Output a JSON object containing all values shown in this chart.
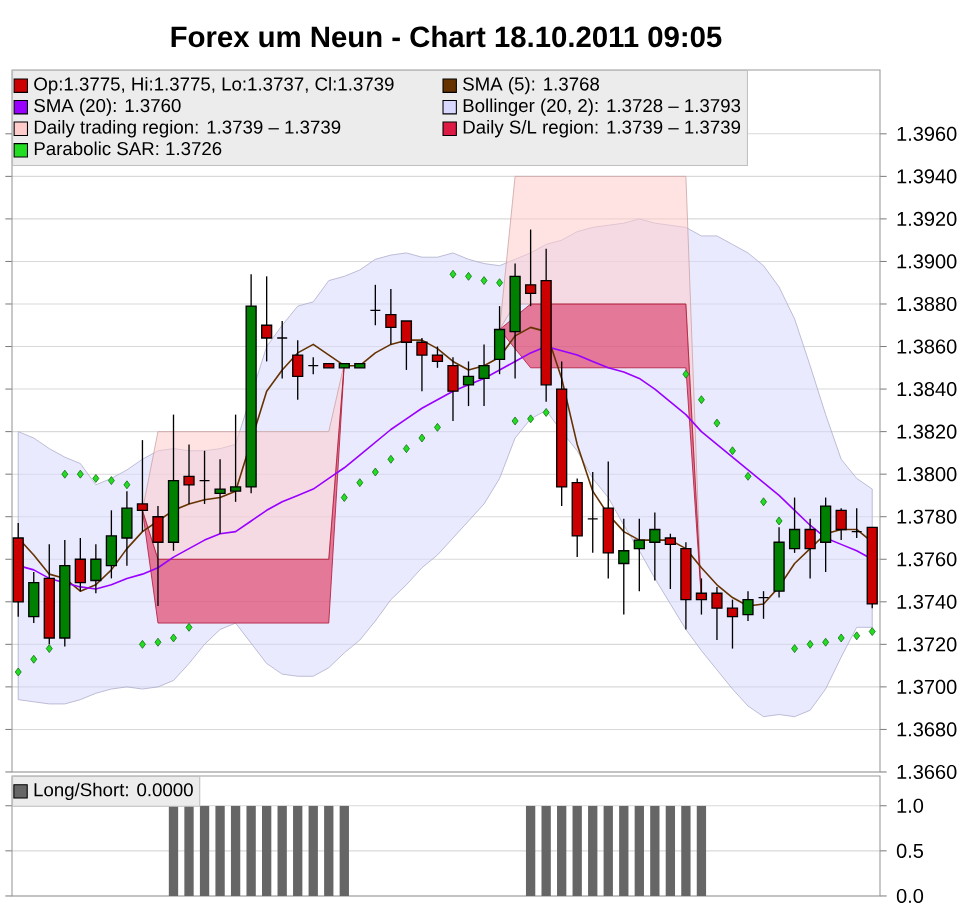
{
  "chart_data": [
    {
      "type": "candlestick",
      "title": "Forex um Neun - Chart 18.10.2011 09:05",
      "categories": [
        null,
        null,
        null,
        null,
        null,
        null,
        null,
        null,
        null,
        null,
        null,
        null,
        null,
        null,
        null,
        null,
        null,
        null,
        null,
        null,
        null,
        null,
        null,
        null,
        null,
        null,
        null,
        null,
        null,
        null,
        null,
        null,
        null,
        null,
        null,
        null,
        null,
        null,
        null,
        null,
        null,
        null,
        null,
        null,
        null,
        null,
        null,
        null,
        null,
        null,
        null,
        null,
        null,
        null,
        null,
        null
      ],
      "ylim": [
        1.366,
        1.399
      ],
      "yticks": [
        {
          "value": 1.366,
          "label": "1.3660"
        },
        {
          "value": 1.368,
          "label": "1.3680"
        },
        {
          "value": 1.37,
          "label": "1.3700"
        },
        {
          "value": 1.372,
          "label": "1.3720"
        },
        {
          "value": 1.374,
          "label": "1.3740"
        },
        {
          "value": 1.376,
          "label": "1.3760"
        },
        {
          "value": 1.378,
          "label": "1.3780"
        },
        {
          "value": 1.38,
          "label": "1.3800"
        },
        {
          "value": 1.382,
          "label": "1.3820"
        },
        {
          "value": 1.384,
          "label": "1.3840"
        },
        {
          "value": 1.386,
          "label": "1.3860"
        },
        {
          "value": 1.388,
          "label": "1.3880"
        },
        {
          "value": 1.39,
          "label": "1.3900"
        },
        {
          "value": 1.392,
          "label": "1.3920"
        },
        {
          "value": 1.394,
          "label": "1.3940"
        },
        {
          "value": 1.396,
          "label": "1.3960"
        }
      ],
      "grid": "y",
      "legend": "top",
      "tick_labels": "y",
      "series": [
        {
          "type": "candlestick",
          "name": "Op:1.3775, Hi:1.3775, Lo:1.3737, Cl:1.3739",
          "color": "#cc0000",
          "colors": [
            "#cc0000",
            "#008000",
            "#cc0000",
            "#008000",
            "#cc0000",
            "#008000",
            "#008000",
            "#008000",
            "#cc0000",
            "#cc0000",
            "#008000",
            "#cc0000",
            "#000000",
            "#008000",
            "#008000",
            "#008000",
            "#cc0000",
            "#000000",
            "#cc0000",
            "#000000",
            "#cc0000",
            "#008000",
            "#008000",
            "#000000",
            "#cc0000",
            "#cc0000",
            "#cc0000",
            "#cc0000",
            "#cc0000",
            "#008000",
            "#008000",
            "#008000",
            "#008000",
            "#cc0000",
            "#cc0000",
            "#cc0000",
            "#cc0000",
            "#000000",
            "#cc0000",
            "#008000",
            "#008000",
            "#008000",
            "#cc0000",
            "#cc0000",
            "#cc0000",
            "#cc0000",
            "#cc0000",
            "#008000",
            "#000000",
            "#008000",
            "#008000",
            "#cc0000",
            "#008000",
            "#cc0000",
            "#000000",
            "#cc0000"
          ],
          "ohlc": [
            [
              1.377,
              1.3777,
              1.3733,
              1.374
            ],
            [
              1.3733,
              1.3754,
              1.373,
              1.3749
            ],
            [
              1.3751,
              1.3767,
              1.372,
              1.3723
            ],
            [
              1.3723,
              1.3769,
              1.3719,
              1.3757
            ],
            [
              1.376,
              1.377,
              1.3745,
              1.3749
            ],
            [
              1.375,
              1.3767,
              1.3744,
              1.376
            ],
            [
              1.3757,
              1.3783,
              1.3751,
              1.3771
            ],
            [
              1.377,
              1.3792,
              1.3757,
              1.3784
            ],
            [
              1.3786,
              1.3816,
              1.3773,
              1.3783
            ],
            [
              1.378,
              1.3785,
              1.3738,
              1.3768
            ],
            [
              1.3768,
              1.3828,
              1.3764,
              1.3797
            ],
            [
              1.3799,
              1.3814,
              1.3786,
              1.3795
            ],
            [
              1.3797,
              1.3811,
              1.3786,
              1.3797
            ],
            [
              1.3791,
              1.3807,
              1.3772,
              1.3793
            ],
            [
              1.3792,
              1.3828,
              1.3787,
              1.3794
            ],
            [
              1.3794,
              1.3894,
              1.3791,
              1.3879
            ],
            [
              1.387,
              1.3893,
              1.3853,
              1.3864
            ],
            [
              1.3864,
              1.3872,
              1.3845,
              1.3864
            ],
            [
              1.3856,
              1.3863,
              1.3835,
              1.3846
            ],
            [
              1.3851,
              1.3855,
              1.3847,
              1.3851
            ],
            [
              1.3852,
              1.3852,
              1.385,
              1.385
            ],
            [
              1.385,
              1.3852,
              1.385,
              1.3852
            ],
            [
              1.385,
              1.3852,
              1.385,
              1.3852
            ],
            [
              1.3877,
              1.3889,
              1.387,
              1.3877
            ],
            [
              1.3875,
              1.3887,
              1.3861,
              1.3869
            ],
            [
              1.3872,
              1.3872,
              1.3849,
              1.3862
            ],
            [
              1.3862,
              1.3864,
              1.3839,
              1.3856
            ],
            [
              1.3856,
              1.386,
              1.385,
              1.3853
            ],
            [
              1.3851,
              1.3855,
              1.3825,
              1.3839
            ],
            [
              1.3842,
              1.3853,
              1.3832,
              1.3846
            ],
            [
              1.3845,
              1.3861,
              1.3832,
              1.3851
            ],
            [
              1.3854,
              1.3879,
              1.3847,
              1.3868
            ],
            [
              1.3867,
              1.3899,
              1.3845,
              1.3893
            ],
            [
              1.3889,
              1.3915,
              1.3879,
              1.3885
            ],
            [
              1.3891,
              1.3906,
              1.3834,
              1.3842
            ],
            [
              1.384,
              1.3853,
              1.3785,
              1.3794
            ],
            [
              1.3796,
              1.3798,
              1.3761,
              1.3771
            ],
            [
              1.3779,
              1.3801,
              1.3763,
              1.3779
            ],
            [
              1.3784,
              1.3806,
              1.3751,
              1.3763
            ],
            [
              1.3758,
              1.3779,
              1.3734,
              1.3764
            ],
            [
              1.3765,
              1.3779,
              1.3745,
              1.3769
            ],
            [
              1.3768,
              1.3782,
              1.375,
              1.3774
            ],
            [
              1.377,
              1.3772,
              1.3746,
              1.3767
            ],
            [
              1.3765,
              1.3768,
              1.3727,
              1.3741
            ],
            [
              1.3744,
              1.3751,
              1.3734,
              1.3741
            ],
            [
              1.3744,
              1.3747,
              1.3722,
              1.3737
            ],
            [
              1.3737,
              1.3741,
              1.3718,
              1.3733
            ],
            [
              1.3734,
              1.3745,
              1.3731,
              1.3741
            ],
            [
              1.3742,
              1.3745,
              1.3732,
              1.3742
            ],
            [
              1.3745,
              1.3775,
              1.3742,
              1.3768
            ],
            [
              1.3765,
              1.3789,
              1.3763,
              1.3774
            ],
            [
              1.3774,
              1.3779,
              1.3751,
              1.3765
            ],
            [
              1.3768,
              1.3789,
              1.3754,
              1.3785
            ],
            [
              1.3783,
              1.3784,
              1.3769,
              1.3774
            ],
            [
              1.3773,
              1.3784,
              1.377,
              1.3773
            ],
            [
              1.3775,
              1.3775,
              1.3737,
              1.3739
            ]
          ]
        },
        {
          "type": "line",
          "name": "SMA (5): 1.3768",
          "color": "#663300",
          "values": [
            1.377,
            1.3762,
            1.3753,
            1.3751,
            1.3745,
            1.3748,
            1.3755,
            1.3765,
            1.3773,
            1.3778,
            1.3783,
            1.3786,
            1.3788,
            1.3789,
            1.3792,
            null,
            1.3839,
            1.3849,
            1.3857,
            1.3861,
            1.3856,
            1.3851,
            1.3851,
            1.3857,
            1.3861,
            1.3863,
            1.3863,
            1.3859,
            1.3853,
            1.3849,
            1.3851,
            1.3855,
            1.3865,
            1.3869,
            1.3867,
            1.3845,
            1.3814,
            1.3792,
            1.3781,
            1.3773,
            1.3769,
            1.3769,
            1.3769,
            1.3765,
            1.3756,
            1.3748,
            1.3742,
            1.3738,
            1.3739,
            1.3747,
            1.3758,
            1.3765,
            1.3772,
            1.3774,
            1.3774,
            1.3768
          ]
        },
        {
          "type": "line",
          "name": "SMA (20): 1.3760",
          "color": "#9900ff",
          "values": [
            1.3757,
            1.3755,
            1.3751,
            1.3749,
            1.3747,
            1.3746,
            1.3748,
            1.3751,
            1.3753,
            1.3756,
            1.3761,
            1.3765,
            1.3769,
            1.3772,
            1.3773,
            1.3778,
            1.3783,
            1.3787,
            1.379,
            1.3793,
            1.3798,
            1.3803,
            1.3809,
            1.3815,
            1.3821,
            1.3826,
            1.3831,
            1.3835,
            1.3839,
            1.3842,
            1.3845,
            1.3849,
            1.3853,
            1.3857,
            1.386,
            1.3858,
            1.3856,
            1.3853,
            1.385,
            1.3848,
            1.3845,
            1.384,
            1.3834,
            1.3828,
            1.382,
            1.3814,
            1.3808,
            1.3802,
            1.3796,
            1.379,
            1.3783,
            1.3776,
            1.377,
            1.3767,
            1.3764,
            1.376
          ]
        },
        {
          "type": "area",
          "name": "Bollinger (20, 2): 1.3728 – 1.3793",
          "color": "#d8d8ff",
          "values": [
            null,
            null,
            null,
            null,
            null,
            null,
            null,
            null,
            null,
            null,
            null,
            null,
            null,
            null,
            null,
            null,
            null,
            null,
            null,
            null,
            null,
            null,
            null,
            null,
            null,
            null,
            null,
            null,
            null,
            null,
            null,
            null,
            null,
            null,
            null,
            null,
            null,
            null,
            null,
            null,
            null,
            null,
            null,
            null,
            null,
            null,
            null,
            null,
            null,
            null,
            null,
            null,
            null,
            null,
            null,
            null
          ],
          "upper": [
            1.382,
            1.3817,
            1.3812,
            1.3808,
            1.3805,
            1.3795,
            1.3798,
            1.3802,
            1.3807,
            1.3811,
            1.3812,
            1.3811,
            1.3811,
            1.3812,
            1.3814,
            null,
            1.386,
            1.387,
            1.3879,
            1.3881,
            1.3891,
            1.3893,
            1.3896,
            1.3901,
            1.3903,
            1.3904,
            1.3902,
            1.3902,
            1.3904,
            1.3901,
            1.3899,
            1.3898,
            1.3901,
            1.3904,
            1.3908,
            1.391,
            1.3914,
            1.3916,
            1.3917,
            1.3918,
            1.392,
            1.3918,
            1.3917,
            1.3916,
            1.3912,
            1.3912,
            1.3908,
            1.3904,
            1.3898,
            1.3888,
            1.3873,
            1.3851,
            1.3828,
            1.3807,
            1.3798,
            1.3793
          ],
          "lower": [
            1.3694,
            1.3693,
            1.3692,
            1.3692,
            1.3694,
            1.3697,
            1.3699,
            1.37,
            1.3699,
            1.37,
            1.3703,
            1.3711,
            1.372,
            1.3727,
            1.373,
            null,
            1.3711,
            1.3706,
            1.3705,
            1.3705,
            1.3709,
            1.3716,
            1.3722,
            1.3731,
            1.3741,
            1.3748,
            1.3756,
            1.3762,
            1.377,
            1.3778,
            1.3786,
            1.3798,
            1.3817,
            1.3826,
            1.383,
            1.382,
            1.3811,
            1.3798,
            1.3789,
            1.3776,
            1.3764,
            1.3751,
            1.3739,
            1.3727,
            1.3717,
            1.3708,
            1.3699,
            1.3691,
            1.3686,
            1.3687,
            1.3686,
            1.3689,
            1.3699,
            1.3714,
            1.3728,
            1.3728
          ]
        },
        {
          "type": "area",
          "name": "Daily trading region: 1.3739 – 1.3739",
          "color": "#ffcccc",
          "values": [
            null,
            null,
            null,
            null,
            null,
            null,
            null,
            null,
            null,
            null,
            null,
            null,
            null,
            null,
            null,
            null,
            null,
            null,
            null,
            null,
            null,
            null,
            null,
            null,
            null,
            null,
            null,
            null,
            null,
            null,
            null,
            null,
            null,
            null,
            null,
            null,
            null,
            null,
            null,
            null,
            null,
            null,
            null,
            null,
            null,
            null,
            null,
            null,
            null,
            null,
            null,
            null,
            null,
            null,
            null,
            null
          ],
          "upper": [
            null,
            null,
            null,
            null,
            null,
            null,
            null,
            null,
            1.3783,
            1.382,
            1.382,
            1.382,
            1.382,
            1.382,
            1.382,
            null,
            1.382,
            1.382,
            1.382,
            1.382,
            1.382,
            1.3852,
            null,
            null,
            null,
            null,
            null,
            null,
            null,
            null,
            null,
            1.3868,
            1.394,
            1.394,
            1.394,
            1.394,
            1.394,
            1.394,
            1.394,
            1.394,
            1.394,
            1.394,
            1.394,
            1.394,
            1.3741,
            null,
            null,
            null,
            null,
            null,
            null,
            null,
            null,
            null,
            null,
            null
          ],
          "lower": [
            null,
            null,
            null,
            null,
            null,
            null,
            null,
            null,
            1.3783,
            1.376,
            1.376,
            1.376,
            1.376,
            1.376,
            1.376,
            null,
            1.376,
            1.376,
            1.376,
            1.376,
            1.376,
            1.3852,
            null,
            null,
            null,
            null,
            null,
            null,
            null,
            null,
            null,
            1.3868,
            1.388,
            1.388,
            1.388,
            1.388,
            1.388,
            1.388,
            1.388,
            1.388,
            1.388,
            1.388,
            1.388,
            1.388,
            1.3741,
            null,
            null,
            null,
            null,
            null,
            null,
            null,
            null,
            null,
            null,
            null
          ]
        },
        {
          "type": "area",
          "name": "Daily S/L region: 1.3739 – 1.3739",
          "color": "#dc1a44",
          "values": [
            null,
            null,
            null,
            null,
            null,
            null,
            null,
            null,
            null,
            null,
            null,
            null,
            null,
            null,
            null,
            null,
            null,
            null,
            null,
            null,
            null,
            null,
            null,
            null,
            null,
            null,
            null,
            null,
            null,
            null,
            null,
            null,
            null,
            null,
            null,
            null,
            null,
            null,
            null,
            null,
            null,
            null,
            null,
            null,
            null,
            null,
            null,
            null,
            null,
            null,
            null,
            null,
            null,
            null,
            null,
            null
          ],
          "upper": [
            null,
            null,
            null,
            null,
            null,
            null,
            null,
            null,
            1.3783,
            1.376,
            1.376,
            1.376,
            1.376,
            1.376,
            1.376,
            1.376,
            1.376,
            1.376,
            1.376,
            1.376,
            1.376,
            1.3852,
            null,
            null,
            null,
            null,
            null,
            null,
            null,
            null,
            null,
            1.3868,
            null,
            1.388,
            null,
            1.388,
            1.388,
            1.388,
            1.388,
            1.388,
            1.388,
            1.388,
            1.388,
            1.388,
            1.3741,
            null,
            null,
            null,
            null,
            null,
            null,
            null,
            null,
            null,
            null,
            null
          ],
          "lower": [
            null,
            null,
            null,
            null,
            null,
            null,
            null,
            null,
            1.3783,
            1.373,
            1.373,
            1.373,
            1.373,
            1.373,
            1.373,
            1.373,
            1.373,
            1.373,
            1.373,
            1.373,
            1.373,
            1.3852,
            null,
            null,
            null,
            null,
            null,
            null,
            null,
            null,
            null,
            1.3868,
            null,
            1.385,
            null,
            1.385,
            1.385,
            1.385,
            1.385,
            1.385,
            1.385,
            1.385,
            1.385,
            1.385,
            1.3741,
            null,
            null,
            null,
            null,
            null,
            null,
            null,
            null,
            null,
            null,
            null
          ]
        },
        {
          "type": "scatter",
          "name": "Parabolic SAR: 1.3726",
          "color": "#22dd22",
          "marker": "diamond",
          "values": [
            1.3707,
            1.3713,
            1.3718,
            1.38,
            1.38,
            1.3798,
            1.3797,
            1.3795,
            1.372,
            1.3721,
            1.3723,
            1.3728,
            null,
            null,
            null,
            null,
            null,
            null,
            null,
            null,
            null,
            1.3789,
            1.3796,
            1.3801,
            1.3807,
            1.3812,
            1.3817,
            1.3822,
            1.3894,
            1.3893,
            1.3891,
            1.389,
            1.3825,
            1.3826,
            1.3829,
            null,
            null,
            null,
            null,
            null,
            null,
            null,
            null,
            1.3847,
            1.3835,
            1.3824,
            1.3811,
            1.3799,
            1.3787,
            1.3778,
            1.3718,
            1.372,
            1.3721,
            1.3723,
            1.3724,
            1.3726
          ]
        }
      ]
    },
    {
      "type": "bar",
      "categories": [
        null,
        null,
        null,
        null,
        null,
        null,
        null,
        null,
        null,
        null,
        null,
        null,
        null,
        null,
        null,
        null,
        null,
        null,
        null,
        null,
        null,
        null,
        null,
        null,
        null,
        null,
        null,
        null,
        null,
        null,
        null,
        null,
        null,
        null,
        null,
        null,
        null,
        null,
        null,
        null,
        null,
        null,
        null,
        null,
        null,
        null,
        null,
        null,
        null,
        null,
        null,
        null,
        null,
        null,
        null,
        null
      ],
      "ylim": [
        0,
        1.33
      ],
      "yticks": [
        {
          "value": 0,
          "label": "0.0"
        },
        {
          "value": 0.5,
          "label": "0.5"
        },
        {
          "value": 1,
          "label": "1.0"
        }
      ],
      "grid": "y",
      "legend": "top",
      "tick_labels": "y",
      "series": [
        {
          "name": "Long/Short: 0.0000",
          "color": "#666666",
          "values": [
            0,
            0,
            0,
            0,
            0,
            0,
            0,
            0,
            0,
            0,
            1,
            1,
            1,
            1,
            1,
            1,
            1,
            1,
            1,
            1,
            1,
            1,
            0,
            0,
            0,
            0,
            0,
            0,
            0,
            0,
            0,
            0,
            0,
            1,
            1,
            1,
            1,
            1,
            1,
            1,
            1,
            1,
            1,
            1,
            1,
            0,
            0,
            0,
            0,
            0,
            0,
            0,
            0,
            0,
            0,
            0
          ]
        }
      ]
    }
  ]
}
